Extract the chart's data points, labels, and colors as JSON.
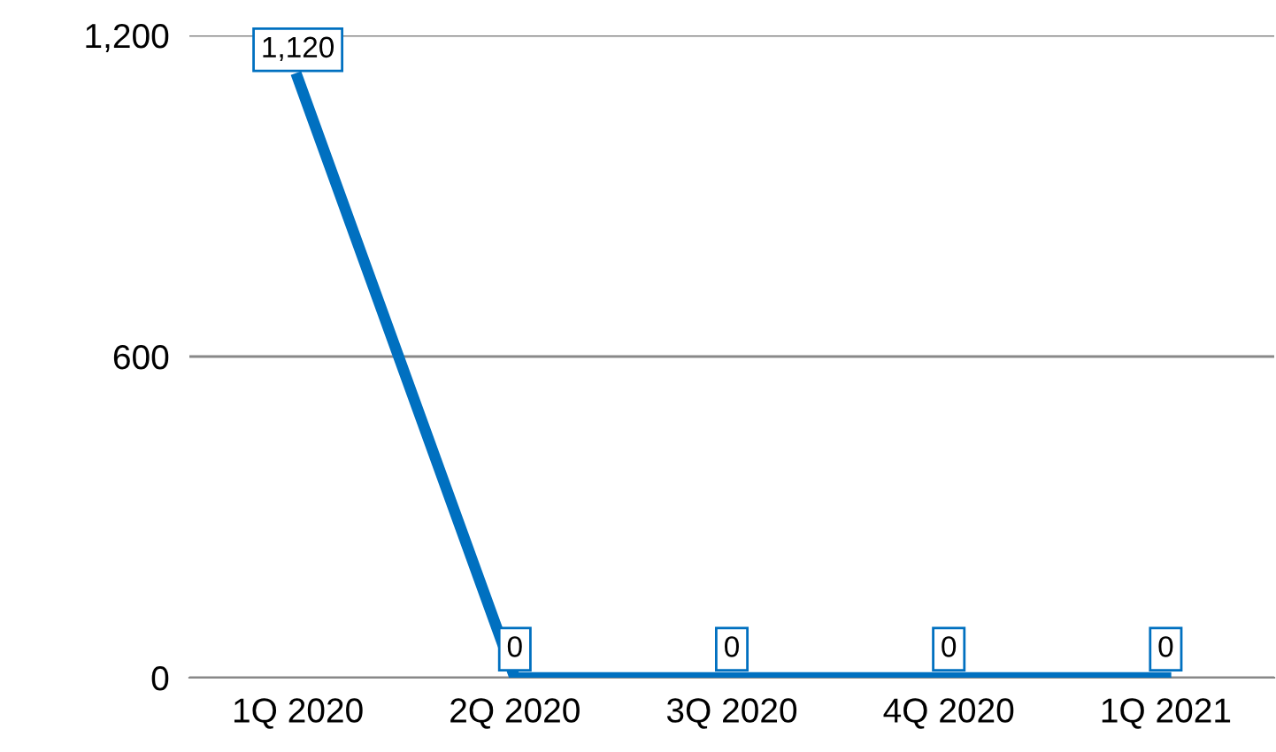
{
  "chart_data": {
    "type": "line",
    "categories": [
      "1Q 2020",
      "2Q 2020",
      "3Q 2020",
      "4Q 2020",
      "1Q 2021"
    ],
    "series": [
      {
        "color": "#0070c0",
        "values": [
          1120,
          0,
          0,
          0,
          0
        ],
        "value_labels": [
          "1,120",
          "0",
          "0",
          "0",
          "0"
        ]
      }
    ],
    "ylim": [
      0,
      1200
    ],
    "yticks": [
      0,
      600,
      {
        "value": 1200,
        "label": "1,200"
      }
    ],
    "grid": "y",
    "line_style": "solid"
  }
}
